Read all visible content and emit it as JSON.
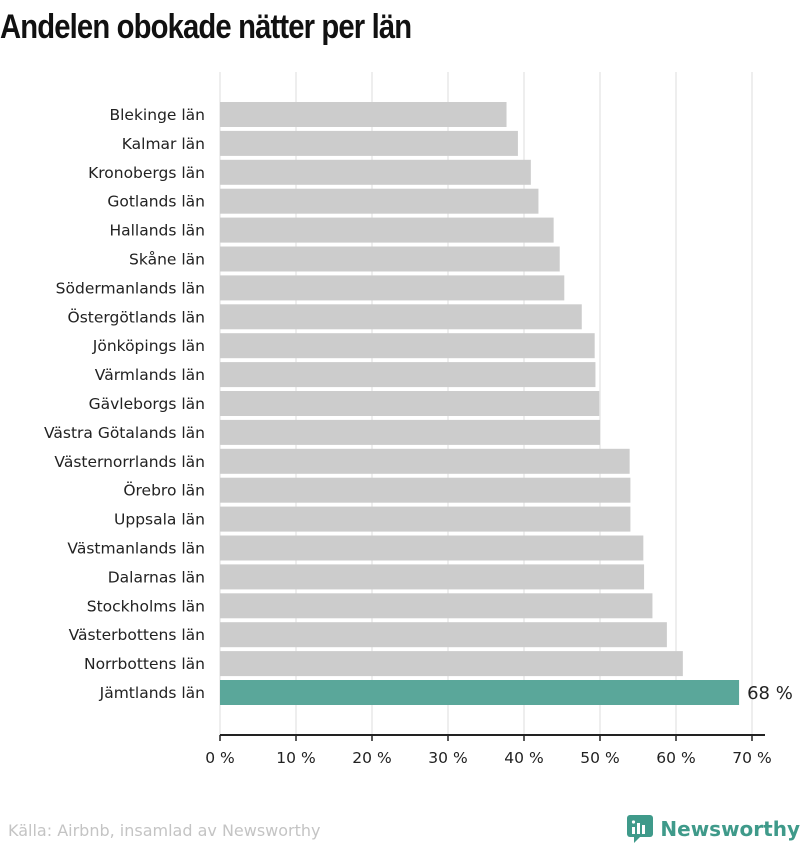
{
  "title": "Andelen obokade nätter per län",
  "source": "Källa: Airbnb, insamlad av Newsworthy",
  "brand": "Newsworthy",
  "colors": {
    "bar": "#cccccc",
    "highlight": "#5aa79a",
    "grid": "#dddddd",
    "axis": "#222222",
    "brand": "#3f9a8a"
  },
  "chart_data": {
    "type": "bar",
    "orientation": "horizontal",
    "categories": [
      "Blekinge län",
      "Kalmar län",
      "Kronobergs län",
      "Gotlands län",
      "Hallands län",
      "Skåne län",
      "Södermanlands län",
      "Östergötlands län",
      "Jönköpings län",
      "Värmlands län",
      "Gävleborgs län",
      "Västra Götalands län",
      "Västernorrlands län",
      "Örebro län",
      "Uppsala län",
      "Västmanlands län",
      "Dalarnas län",
      "Stockholms län",
      "Västerbottens län",
      "Norrbottens län",
      "Jämtlands län"
    ],
    "values": [
      37.7,
      39.2,
      40.9,
      41.9,
      43.9,
      44.7,
      45.3,
      47.6,
      49.3,
      49.4,
      49.9,
      50.0,
      53.9,
      54.0,
      54.0,
      55.7,
      55.8,
      56.9,
      58.8,
      60.9,
      68.3
    ],
    "highlight_index": 20,
    "highlight_label": "68 %",
    "xlim": [
      0,
      70
    ],
    "xticks": [
      0,
      10,
      20,
      30,
      40,
      50,
      60,
      70
    ],
    "xtick_labels": [
      "0 %",
      "10 %",
      "20 %",
      "30 %",
      "40 %",
      "50 %",
      "60 %",
      "70 %"
    ],
    "grid": true
  }
}
